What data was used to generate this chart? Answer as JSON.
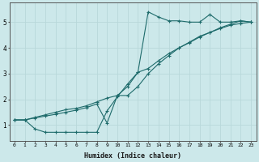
{
  "xlabel": "Humidex (Indice chaleur)",
  "bg_color": "#cce8ea",
  "line_color": "#1e6b6b",
  "grid_color": "#b8d8da",
  "xlim": [
    -0.5,
    23.5
  ],
  "ylim": [
    0.4,
    5.75
  ],
  "xticks": [
    0,
    1,
    2,
    3,
    4,
    5,
    6,
    7,
    8,
    9,
    10,
    11,
    12,
    13,
    14,
    15,
    16,
    17,
    18,
    19,
    20,
    21,
    22,
    23
  ],
  "yticks": [
    1,
    2,
    3,
    4,
    5
  ],
  "line1_x": [
    0,
    1,
    2,
    3,
    4,
    5,
    6,
    7,
    8,
    9,
    10,
    11,
    12,
    13,
    14,
    15,
    16,
    17,
    18,
    19,
    20,
    21,
    22,
    23
  ],
  "line1_y": [
    1.2,
    1.2,
    0.85,
    0.72,
    0.72,
    0.72,
    0.72,
    0.72,
    0.72,
    1.55,
    2.1,
    2.6,
    3.05,
    5.4,
    5.2,
    5.05,
    5.05,
    5.0,
    5.0,
    5.3,
    5.0,
    5.0,
    5.05,
    5.0
  ],
  "line2_x": [
    0,
    1,
    2,
    3,
    4,
    5,
    6,
    7,
    8,
    9,
    10,
    11,
    12,
    13,
    14,
    15,
    16,
    17,
    18,
    19,
    20,
    21,
    22,
    23
  ],
  "line2_y": [
    1.2,
    1.2,
    1.3,
    1.4,
    1.5,
    1.6,
    1.65,
    1.75,
    1.9,
    2.05,
    2.15,
    2.5,
    3.05,
    3.2,
    3.5,
    3.78,
    4.0,
    4.2,
    4.42,
    4.6,
    4.75,
    4.88,
    4.95,
    5.0
  ],
  "line3_x": [
    0,
    1,
    2,
    3,
    4,
    5,
    6,
    7,
    8,
    9,
    10,
    11,
    12,
    13,
    14,
    15,
    16,
    17,
    18,
    19,
    20,
    21,
    22,
    23
  ],
  "line3_y": [
    1.2,
    1.2,
    1.28,
    1.35,
    1.42,
    1.5,
    1.58,
    1.68,
    1.82,
    1.08,
    2.15,
    2.15,
    2.5,
    3.0,
    3.38,
    3.7,
    4.0,
    4.22,
    4.45,
    4.6,
    4.78,
    4.92,
    5.05,
    5.0
  ]
}
